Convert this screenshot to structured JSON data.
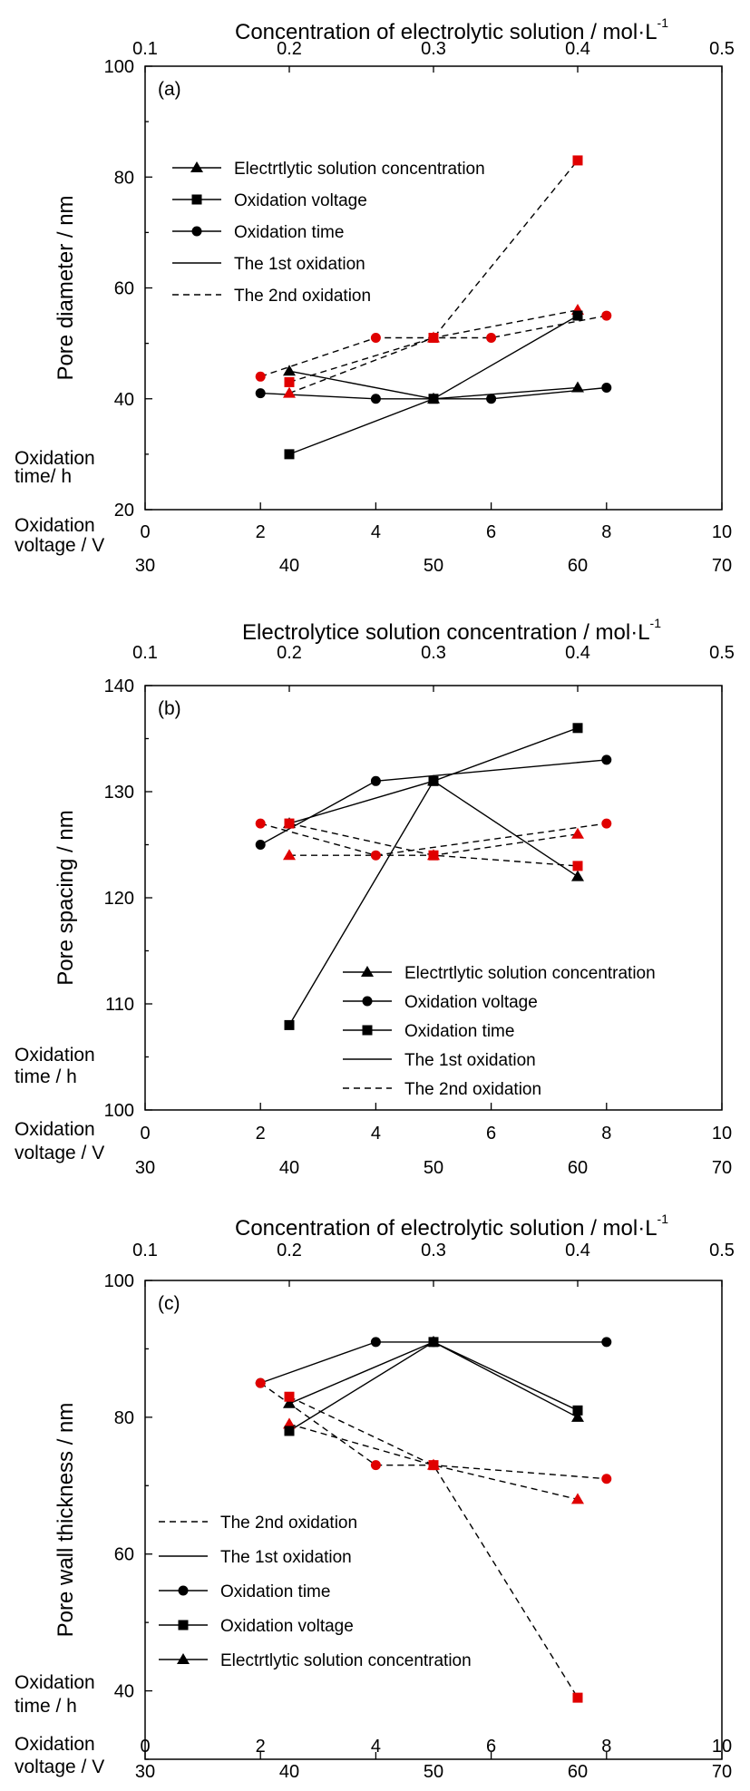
{
  "colors": {
    "first_oxidation": "#000000",
    "second_oxidation": "#e00000"
  },
  "chart_data": [
    {
      "type": "line",
      "panel_label": "(a)",
      "title": "",
      "top_xlabel": "Concentration of electrolytic solution / mol·L",
      "top_xlabel_superscript": "-1",
      "top_xlim": [
        0.1,
        0.5
      ],
      "top_ticks": [
        "0.1",
        "0.2",
        "0.3",
        "0.4",
        "0.5"
      ],
      "ylabel": "Pore diameter / nm",
      "ylim": [
        20,
        100
      ],
      "y_ticks": [
        "20",
        "40",
        "60",
        "80",
        "100"
      ],
      "time_axis_label_lines": [
        "Oxidation",
        "time/ h"
      ],
      "time_xlim": [
        0,
        10
      ],
      "time_ticks": [
        "0",
        "2",
        "4",
        "6",
        "8",
        "10"
      ],
      "voltage_axis_label_lines": [
        "Oxidation",
        "voltage / V"
      ],
      "voltage_xlim": [
        30,
        70
      ],
      "voltage_ticks": [
        "30",
        "40",
        "50",
        "60",
        "70"
      ],
      "grid": false,
      "legend_position": "upper-left",
      "legend": [
        {
          "label": "Electrtlytic solution concentration",
          "marker": "triangle",
          "dash": "solid"
        },
        {
          "label": "Oxidation voltage",
          "marker": "square",
          "dash": "solid"
        },
        {
          "label": "Oxidation time",
          "marker": "circle",
          "dash": "solid"
        },
        {
          "label": "The 1st oxidation",
          "marker": "none",
          "dash": "solid"
        },
        {
          "label": "The 2nd oxidation",
          "marker": "none",
          "dash": "dashed"
        }
      ],
      "series": [
        {
          "variable": "concentration",
          "oxidation": "1st",
          "marker": "triangle",
          "x": [
            0.2,
            0.3,
            0.4
          ],
          "y": [
            45,
            40,
            42
          ]
        },
        {
          "variable": "concentration",
          "oxidation": "2nd",
          "marker": "triangle",
          "x": [
            0.2,
            0.3,
            0.4
          ],
          "y": [
            41,
            51,
            56
          ]
        },
        {
          "variable": "voltage",
          "oxidation": "1st",
          "marker": "square",
          "x": [
            40,
            50,
            60
          ],
          "y": [
            30,
            40,
            55
          ]
        },
        {
          "variable": "voltage",
          "oxidation": "2nd",
          "marker": "square",
          "x": [
            40,
            50,
            60
          ],
          "y": [
            43,
            51,
            83
          ]
        },
        {
          "variable": "time",
          "oxidation": "1st",
          "marker": "circle",
          "x": [
            2,
            4,
            6,
            8
          ],
          "y": [
            41,
            40,
            40,
            42
          ]
        },
        {
          "variable": "time",
          "oxidation": "2nd",
          "marker": "circle",
          "x": [
            2,
            4,
            6,
            8
          ],
          "y": [
            44,
            51,
            51,
            55
          ]
        }
      ]
    },
    {
      "type": "line",
      "panel_label": "(b)",
      "title": "",
      "top_xlabel": "Electrolytice solution concentration / mol·L",
      "top_xlabel_superscript": "-1",
      "top_xlim": [
        0.1,
        0.5
      ],
      "top_ticks": [
        "0.1",
        "0.2",
        "0.3",
        "0.4",
        "0.5"
      ],
      "ylabel": "Pore spacing / nm",
      "ylim": [
        100,
        140
      ],
      "y_ticks": [
        "100",
        "110",
        "120",
        "130",
        "140"
      ],
      "time_axis_label_lines": [
        "Oxidation",
        "time / h"
      ],
      "time_xlim": [
        0,
        10
      ],
      "time_ticks": [
        "0",
        "2",
        "4",
        "6",
        "8",
        "10"
      ],
      "voltage_axis_label_lines": [
        "Oxidation",
        "voltage / V"
      ],
      "voltage_xlim": [
        30,
        70
      ],
      "voltage_ticks": [
        "30",
        "40",
        "50",
        "60",
        "70"
      ],
      "grid": false,
      "legend_position": "lower-right",
      "legend": [
        {
          "label": "Electrtlytic solution concentration",
          "marker": "triangle",
          "dash": "solid"
        },
        {
          "label": "Oxidation voltage",
          "marker": "circle",
          "dash": "solid"
        },
        {
          "label": "Oxidation time",
          "marker": "square",
          "dash": "solid"
        },
        {
          "label": "The 1st oxidation",
          "marker": "none",
          "dash": "solid"
        },
        {
          "label": "The 2nd oxidation",
          "marker": "none",
          "dash": "dashed"
        }
      ],
      "series": [
        {
          "variable": "concentration",
          "oxidation": "1st",
          "marker": "triangle",
          "x": [
            0.2,
            0.3,
            0.4
          ],
          "y": [
            127,
            131,
            122
          ]
        },
        {
          "variable": "concentration",
          "oxidation": "2nd",
          "marker": "triangle",
          "x": [
            0.2,
            0.3,
            0.4
          ],
          "y": [
            124,
            124,
            126
          ]
        },
        {
          "variable": "voltage",
          "oxidation": "1st",
          "marker": "circle",
          "x": [
            38,
            46,
            62
          ],
          "y": [
            125,
            131,
            133
          ]
        },
        {
          "variable": "voltage",
          "oxidation": "2nd",
          "marker": "circle",
          "x": [
            38,
            46,
            62
          ],
          "y": [
            127,
            124,
            127
          ]
        },
        {
          "variable": "time",
          "oxidation": "1st",
          "marker": "square",
          "x": [
            2.5,
            5,
            7.5
          ],
          "y": [
            108,
            131,
            136
          ]
        },
        {
          "variable": "time",
          "oxidation": "2nd",
          "marker": "square",
          "x": [
            2.5,
            5,
            7.5
          ],
          "y": [
            127,
            124,
            123
          ]
        }
      ]
    },
    {
      "type": "line",
      "panel_label": "(c)",
      "title": "",
      "top_xlabel": "Concentration of electrolytic solution / mol·L",
      "top_xlabel_superscript": "-1",
      "top_xlim": [
        0.1,
        0.5
      ],
      "top_ticks": [
        "0.1",
        "0.2",
        "0.3",
        "0.4",
        "0.5"
      ],
      "ylabel": "Pore wall thickness / nm",
      "ylim": [
        30,
        100
      ],
      "y_ticks": [
        "40",
        "60",
        "80",
        "100"
      ],
      "time_axis_label_lines": [
        "Oxidation",
        "time / h"
      ],
      "time_xlim": [
        0,
        10
      ],
      "time_ticks": [
        "0",
        "2",
        "4",
        "6",
        "8",
        "10"
      ],
      "voltage_axis_label_lines": [
        "Oxidation",
        "voltage / V"
      ],
      "voltage_xlim": [
        30,
        70
      ],
      "voltage_ticks": [
        "30",
        "40",
        "50",
        "60",
        "70"
      ],
      "grid": false,
      "legend_position": "lower-left",
      "legend": [
        {
          "label": "The 2nd oxidation",
          "marker": "none",
          "dash": "dashed"
        },
        {
          "label": "The 1st oxidation",
          "marker": "none",
          "dash": "solid"
        },
        {
          "label": "Oxidation time",
          "marker": "circle",
          "dash": "solid"
        },
        {
          "label": "Oxidation voltage",
          "marker": "square",
          "dash": "solid"
        },
        {
          "label": "Electrtlytic solution concentration",
          "marker": "triangle",
          "dash": "solid"
        }
      ],
      "series": [
        {
          "variable": "concentration",
          "oxidation": "1st",
          "marker": "triangle",
          "x": [
            0.2,
            0.3,
            0.4
          ],
          "y": [
            82,
            91,
            80
          ]
        },
        {
          "variable": "concentration",
          "oxidation": "2nd",
          "marker": "triangle",
          "x": [
            0.2,
            0.3,
            0.4
          ],
          "y": [
            79,
            73,
            68
          ]
        },
        {
          "variable": "voltage",
          "oxidation": "1st",
          "marker": "square",
          "x": [
            40,
            50,
            60
          ],
          "y": [
            78,
            91,
            81
          ]
        },
        {
          "variable": "voltage",
          "oxidation": "2nd",
          "marker": "square",
          "x": [
            40,
            50,
            60
          ],
          "y": [
            83,
            73,
            39
          ]
        },
        {
          "variable": "time",
          "oxidation": "1st",
          "marker": "circle",
          "x": [
            2,
            4,
            5,
            8
          ],
          "y": [
            85,
            91,
            91,
            91
          ]
        },
        {
          "variable": "time",
          "oxidation": "2nd",
          "marker": "circle",
          "x": [
            2,
            4,
            5,
            8
          ],
          "y": [
            85,
            73,
            73,
            71
          ]
        }
      ]
    }
  ]
}
